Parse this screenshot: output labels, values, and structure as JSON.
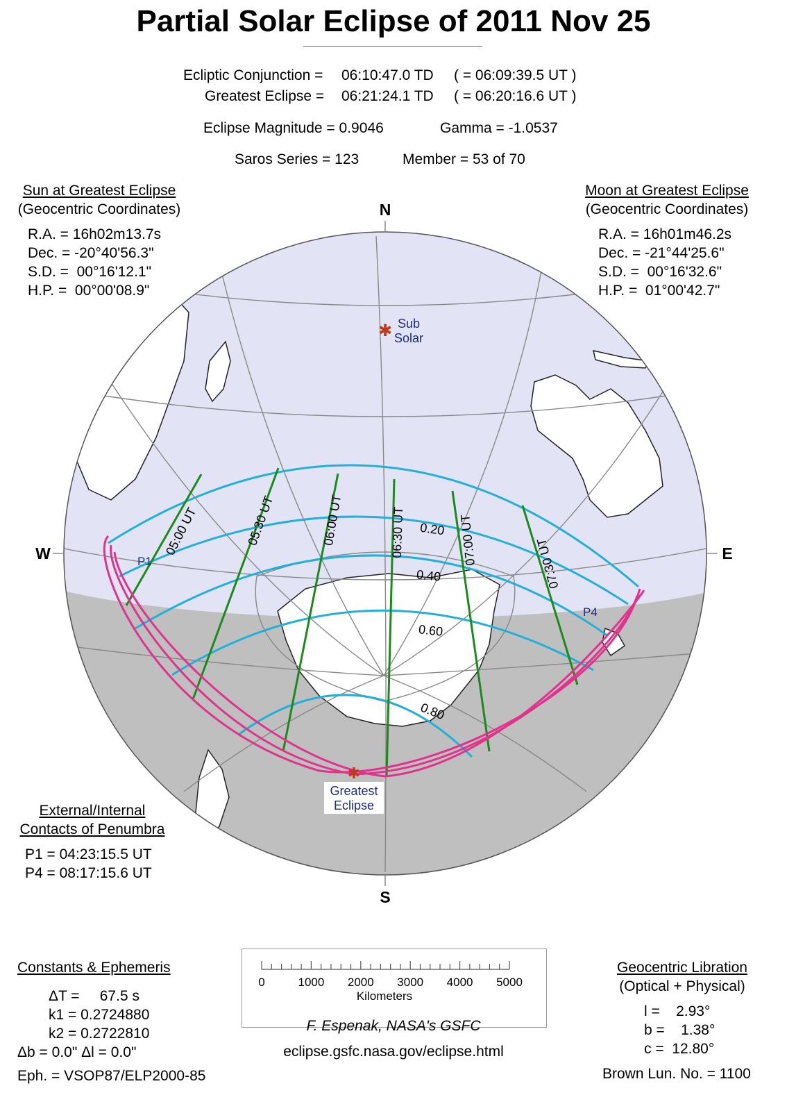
{
  "title": "Partial Solar Eclipse of  2011 Nov 25",
  "header": {
    "conj_label": "Ecliptic Conjunction =",
    "conj_td": "06:10:47.0 TD",
    "conj_ut": "( = 06:09:39.5 UT )",
    "greatest_label": "Greatest Eclipse =",
    "greatest_td": "06:21:24.1 TD",
    "greatest_ut": "( = 06:20:16.6 UT )",
    "magnitude": "Eclipse Magnitude =  0.9046",
    "gamma": "Gamma = -1.0537",
    "saros": "Saros Series = 123",
    "member": "Member = 53 of 70"
  },
  "sun": {
    "heading": "Sun at Greatest Eclipse",
    "sub": "(Geocentric Coordinates)",
    "ra": "R.A. = 16h02m13.7s",
    "dec": "Dec. = -20°40'56.3\"",
    "sd": "S.D. =  00°16'12.1\"",
    "hp": "H.P. =  00°00'08.9\""
  },
  "moon": {
    "heading": "Moon at Greatest Eclipse",
    "sub": "(Geocentric Coordinates)",
    "ra": "R.A. = 16h01m46.2s",
    "dec": "Dec. = -21°44'25.6\"",
    "sd": "S.D. =  00°16'32.6\"",
    "hp": "H.P. =  01°00'42.7\""
  },
  "directions": {
    "n": "N",
    "s": "S",
    "w": "W",
    "e": "E"
  },
  "map_labels": {
    "sub_solar_1": "Sub",
    "sub_solar_2": "Solar",
    "greatest_1": "Greatest",
    "greatest_2": "Eclipse",
    "p1": "P1",
    "p4": "P4",
    "times": [
      "05:00 UT",
      "05:30 UT",
      "06:00 UT",
      "06:30 UT",
      "07:00 UT",
      "07:30 UT"
    ],
    "magnitudes": [
      "0.20",
      "0.40",
      "0.60",
      "0.80"
    ]
  },
  "contacts": {
    "heading_1": "External/Internal",
    "heading_2": "Contacts of Penumbra",
    "p1": "P1 = 04:23:15.5 UT",
    "p4": "P4 = 08:17:15.6 UT"
  },
  "constants": {
    "heading": "Constants & Ephemeris",
    "dt": "ΔT =     67.5 s",
    "k1": "k1 = 0.2724880",
    "k2": "k2 = 0.2722810",
    "db_dl": "Δb =   0.0\"     Δl =   0.0\"",
    "eph": "Eph. = VSOP87/ELP2000-85"
  },
  "scale": {
    "ticks": [
      "0",
      "1000",
      "2000",
      "3000",
      "4000",
      "5000"
    ],
    "unit": "Kilometers"
  },
  "credit": "F. Espenak, NASA's GSFC",
  "url": "eclipse.gsfc.nasa.gov/eclipse.html",
  "libration": {
    "heading": "Geocentric Libration",
    "sub": "(Optical + Physical)",
    "l": "l =    2.93°",
    "b": "b =    1.38°",
    "c": "c =  12.80°",
    "brown": "Brown Lun. No. = 1100"
  },
  "colors": {
    "sunlit": "#e3e3f6",
    "night": "#bfbfbf",
    "magnitude_line": "#22b0d8",
    "time_line": "#1a8a1a",
    "limit_line": "#e0338c",
    "label_blue": "#1a2a8a",
    "marker": "#c0391b"
  }
}
